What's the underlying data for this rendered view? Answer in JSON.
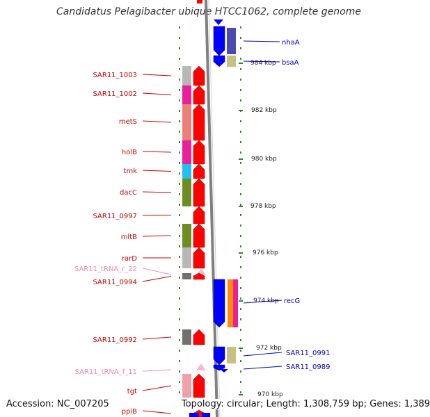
{
  "title": "Candidatus Pelagibacter ubique HTCC1062, complete genome",
  "accession": "Accession: NC_007205",
  "topology": "Topology: circular; Length: 1,308,759 bp; Genes: 1,389",
  "colors": {
    "backbone": "#808080",
    "tick": "#2e8b20",
    "left_label": "#cc0000",
    "trna_label": "#f08ab4",
    "right_label": "#0000cc",
    "forward_arrow": "#ff0000",
    "reverse_arrow": "#0000ff"
  },
  "scale": [
    {
      "label": "984 kbp"
    },
    {
      "label": "982 kbp"
    },
    {
      "label": "980 kbp"
    },
    {
      "label": "978 kbp"
    },
    {
      "label": "976 kbp"
    },
    {
      "label": "974 kbp"
    },
    {
      "label": "972 kbp"
    },
    {
      "label": "970 kbp"
    }
  ],
  "left_genes": [
    {
      "name": "SAR11_1003",
      "kind": "gene",
      "cog": "#b8b8b8"
    },
    {
      "name": "SAR11_1002",
      "kind": "gene",
      "cog": "#e8209a"
    },
    {
      "name": "metS",
      "kind": "gene",
      "cog": "#ea8078"
    },
    {
      "name": "holB",
      "kind": "gene",
      "cog": "#e8209a"
    },
    {
      "name": "tmk",
      "kind": "gene",
      "cog": "#20c0f0"
    },
    {
      "name": "dacC",
      "kind": "gene",
      "cog": "#6b8e23"
    },
    {
      "name": "SAR11_0997",
      "kind": "gene",
      "cog": ""
    },
    {
      "name": "mltB",
      "kind": "gene",
      "cog": "#6b8e23"
    },
    {
      "name": "rarD",
      "kind": "gene",
      "cog": "#b8b8b8"
    },
    {
      "name": "SAR11_tRNA_r_22",
      "kind": "trna",
      "cog": ""
    },
    {
      "name": "SAR11_0994",
      "kind": "gene",
      "cog": "#707070"
    },
    {
      "name": "SAR11_0992",
      "kind": "gene",
      "cog": "#707070"
    },
    {
      "name": "SAR11_tRNA_f_11",
      "kind": "trna",
      "cog": ""
    },
    {
      "name": "tgt",
      "kind": "gene",
      "cog": "#f0a0a8"
    },
    {
      "name": "ppiB",
      "kind": "gene",
      "cog": ""
    }
  ],
  "right_genes": [
    {
      "name": "nhaA",
      "cog": "#4b4bb0"
    },
    {
      "name": "bsaA",
      "cog": "#c8c080"
    },
    {
      "name": "recG",
      "cog": "#ff8c00"
    },
    {
      "name": "SAR11_0991",
      "cog": "#c8c080"
    },
    {
      "name": "SAR11_0989",
      "cog": ""
    }
  ]
}
